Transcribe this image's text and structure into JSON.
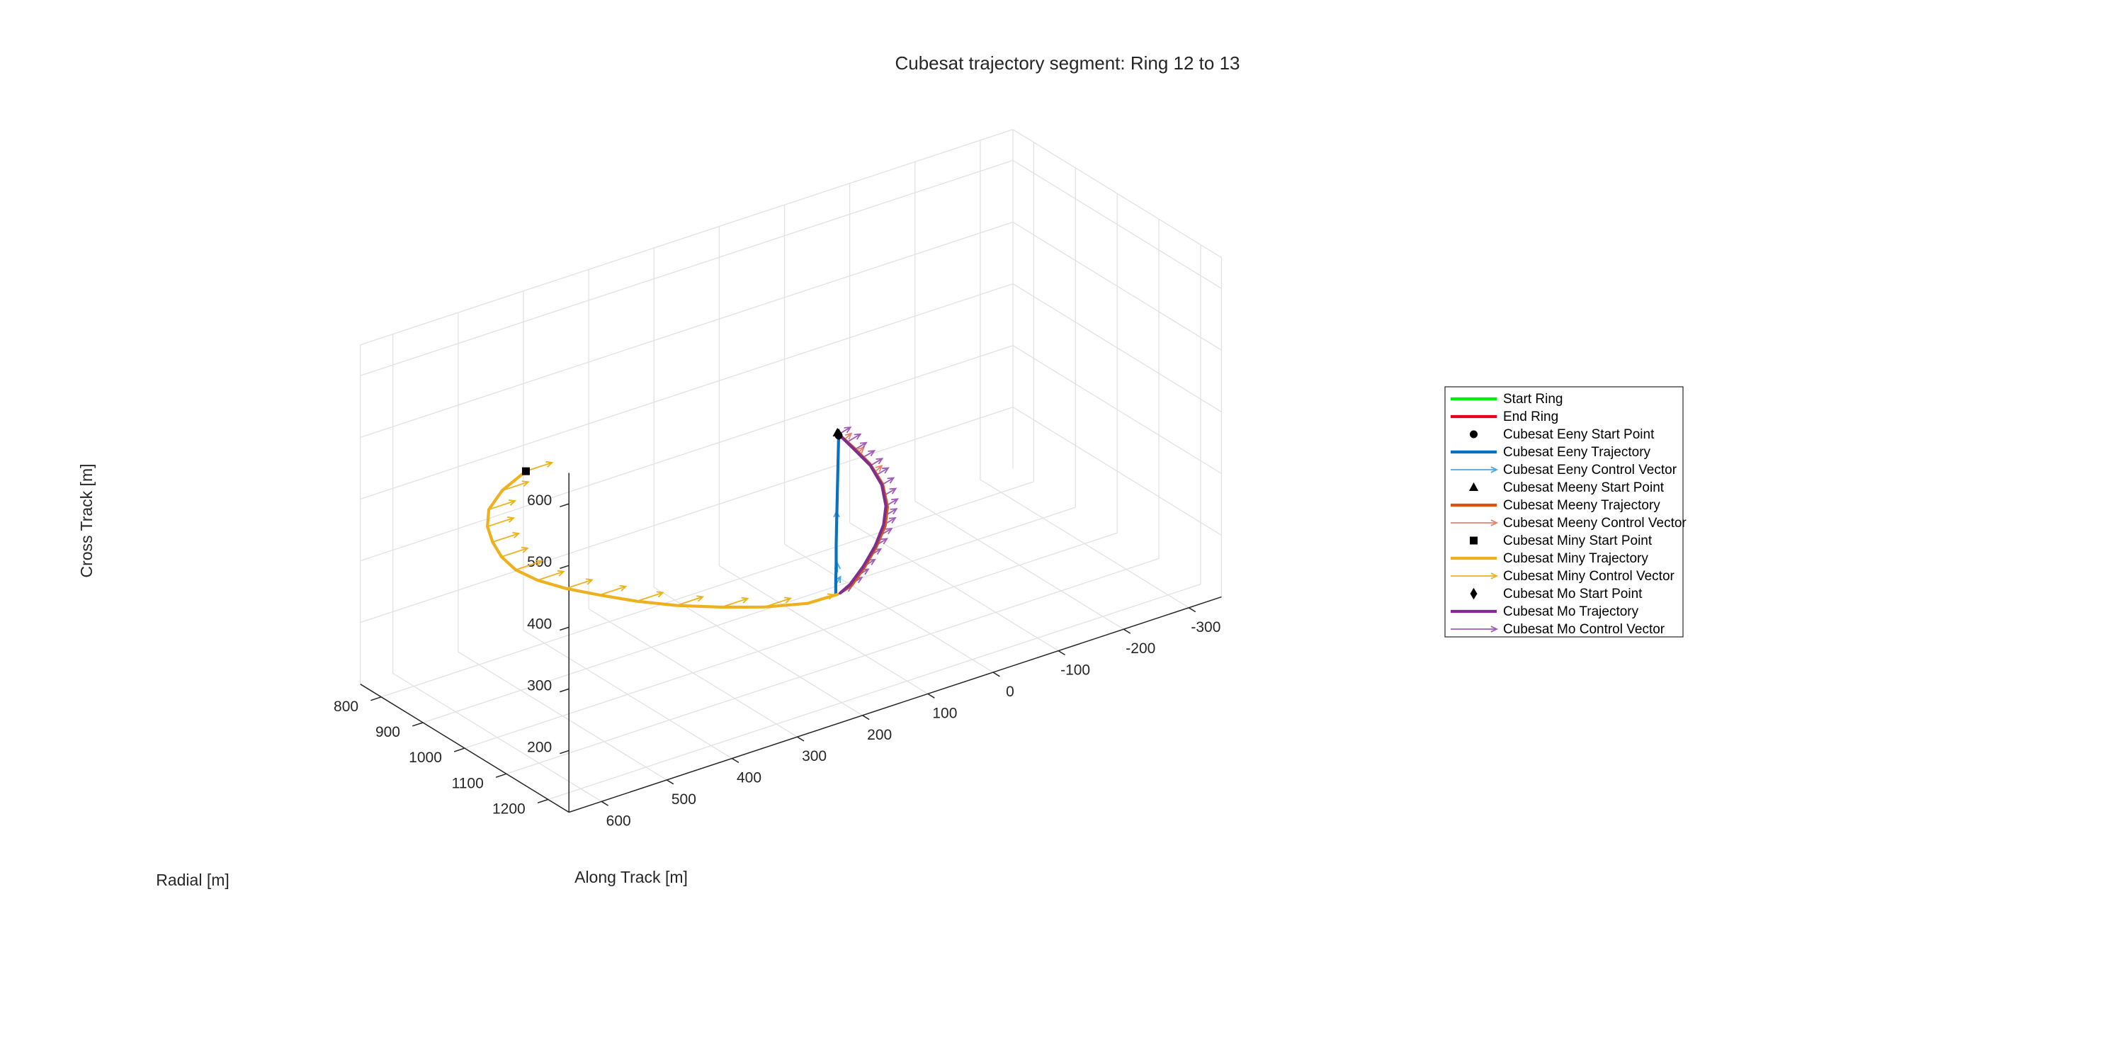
{
  "chart_data": {
    "type": "3d-line",
    "title": "Cubesat trajectory segment: Ring 12 to 13",
    "xlabel": "Along Track [m]",
    "ylabel": "Radial [m]",
    "zlabel": "Cross Track [m]",
    "xlim": [
      -350,
      650
    ],
    "ylim": [
      750,
      1250
    ],
    "zlim": [
      100,
      650
    ],
    "x_ticks": [
      -300,
      -200,
      -100,
      0,
      100,
      200,
      300,
      400,
      500,
      600
    ],
    "y_ticks": [
      800,
      900,
      1000,
      1100,
      1200
    ],
    "z_ticks": [
      200,
      300,
      400,
      500,
      600
    ],
    "grid": true,
    "legend_position": "right",
    "series": [
      {
        "name": "Start Ring",
        "kind": "line",
        "color": "#00ee00",
        "points": []
      },
      {
        "name": "End Ring",
        "kind": "line",
        "color": "#e8001c",
        "points": []
      },
      {
        "name": "Cubesat Eeny Start Point",
        "kind": "marker",
        "marker": "circle",
        "color": "#000000",
        "points": [
          [
            80,
            1005,
            410
          ]
        ]
      },
      {
        "name": "Cubesat Eeny Trajectory",
        "kind": "line",
        "color": "#0a72bd",
        "points": [
          [
            80,
            1005,
            410
          ],
          [
            80,
            1004,
            380
          ],
          [
            80,
            1003,
            350
          ],
          [
            80,
            1002,
            320
          ],
          [
            80,
            1001,
            290
          ],
          [
            80,
            1000,
            260
          ],
          [
            80,
            999,
            230
          ],
          [
            80,
            999,
            200
          ],
          [
            80,
            998,
            170
          ],
          [
            80,
            998,
            150
          ]
        ]
      },
      {
        "name": "Cubesat Eeny Control Vector",
        "kind": "arrows",
        "color": "#4da6e0",
        "arrows": [
          [
            80,
            1000,
            270,
            0,
            0,
            15
          ],
          [
            78,
            999,
            185,
            0,
            0,
            15
          ],
          [
            80,
            998,
            165,
            -6,
            2,
            12
          ]
        ]
      },
      {
        "name": "Cubesat Meeny Start Point",
        "kind": "marker",
        "marker": "triangle",
        "color": "#000000",
        "points": [
          [
            82,
            1005,
            415
          ]
        ]
      },
      {
        "name": "Cubesat Meeny Trajectory",
        "kind": "line",
        "color": "#d95319",
        "points": [
          [
            82,
            1005,
            415
          ],
          [
            55,
            1003,
            380
          ],
          [
            30,
            1002,
            345
          ],
          [
            10,
            1001,
            305
          ],
          [
            2,
            1000,
            265
          ],
          [
            5,
            999,
            235
          ],
          [
            18,
            998,
            205
          ],
          [
            35,
            997,
            178
          ],
          [
            55,
            997,
            155
          ],
          [
            72,
            998,
            150
          ]
        ]
      },
      {
        "name": "Cubesat Meeny Control Vector",
        "kind": "arrows",
        "color": "#e8826b",
        "arrows": [
          [
            70,
            1004,
            400,
            -10,
            0,
            6
          ],
          [
            50,
            1003,
            370,
            -10,
            0,
            6
          ],
          [
            22,
            1002,
            330,
            -10,
            0,
            6
          ]
        ]
      },
      {
        "name": "Cubesat Miny Start Point",
        "kind": "marker",
        "marker": "square",
        "color": "#000000",
        "points": [
          [
            620,
            1100,
            580
          ]
        ]
      },
      {
        "name": "Cubesat Miny Trajectory",
        "kind": "line",
        "color": "#edb120",
        "points": [
          [
            620,
            1100,
            580
          ],
          [
            650,
            1090,
            555
          ],
          [
            664,
            1080,
            525
          ],
          [
            661,
            1072,
            493
          ],
          [
            648,
            1064,
            460
          ],
          [
            628,
            1054,
            425
          ],
          [
            600,
            1044,
            390
          ],
          [
            560,
            1034,
            355
          ],
          [
            510,
            1024,
            320
          ],
          [
            452,
            1014,
            285
          ],
          [
            390,
            1006,
            250
          ],
          [
            325,
            1000,
            218
          ],
          [
            255,
            998,
            190
          ],
          [
            190,
            999,
            168
          ],
          [
            125,
            1001,
            152
          ],
          [
            78,
            1000,
            150
          ]
        ]
      },
      {
        "name": "Cubesat Miny Control Vector",
        "kind": "arrows",
        "color": "#edb120",
        "arrows": [
          [
            620,
            1100,
            580,
            -40,
            0,
            0
          ],
          [
            650,
            1090,
            555,
            -40,
            0,
            0
          ],
          [
            664,
            1080,
            525,
            -40,
            0,
            0
          ],
          [
            661,
            1072,
            493,
            -40,
            0,
            0
          ],
          [
            648,
            1064,
            460,
            -40,
            0,
            0
          ],
          [
            628,
            1054,
            425,
            -40,
            0,
            0
          ],
          [
            600,
            1044,
            390,
            -40,
            0,
            0
          ],
          [
            560,
            1034,
            355,
            -40,
            0,
            0
          ],
          [
            510,
            1024,
            320,
            -40,
            0,
            0
          ],
          [
            452,
            1014,
            285,
            -40,
            0,
            0
          ],
          [
            390,
            1006,
            250,
            -40,
            0,
            0
          ],
          [
            325,
            1000,
            218,
            -40,
            0,
            0
          ],
          [
            255,
            998,
            190,
            -40,
            0,
            0
          ],
          [
            190,
            999,
            168,
            -40,
            0,
            0
          ],
          [
            125,
            1001,
            152,
            -40,
            0,
            0
          ]
        ]
      },
      {
        "name": "Cubesat Mo Start Point",
        "kind": "marker",
        "marker": "diamond",
        "color": "#000000",
        "points": [
          [
            80,
            1005,
            412
          ]
        ]
      },
      {
        "name": "Cubesat Mo Trajectory",
        "kind": "line",
        "color": "#7e2f8e",
        "points": [
          [
            80,
            1005,
            412
          ],
          [
            55,
            1004,
            378
          ],
          [
            30,
            1003,
            343
          ],
          [
            12,
            1002,
            305
          ],
          [
            5,
            1001,
            268
          ],
          [
            8,
            1000,
            238
          ],
          [
            20,
            999,
            208
          ],
          [
            38,
            998,
            180
          ],
          [
            58,
            998,
            158
          ],
          [
            74,
            999,
            150
          ]
        ]
      },
      {
        "name": "Cubesat Mo Control Vector",
        "kind": "arrows",
        "color": "#a05cb8",
        "arrows": [
          [
            80,
            1005,
            412,
            -18,
            0,
            5
          ],
          [
            64,
            1004,
            395,
            -18,
            0,
            5
          ],
          [
            55,
            1004,
            378,
            -18,
            0,
            5
          ],
          [
            42,
            1003,
            360,
            -18,
            0,
            5
          ],
          [
            30,
            1003,
            343,
            -18,
            0,
            5
          ],
          [
            20,
            1002,
            324,
            -18,
            0,
            5
          ],
          [
            12,
            1002,
            305,
            -18,
            0,
            5
          ],
          [
            8,
            1001,
            286,
            -18,
            0,
            5
          ],
          [
            5,
            1001,
            268,
            -18,
            0,
            5
          ],
          [
            6,
            1000,
            252,
            -18,
            0,
            5
          ],
          [
            8,
            1000,
            238,
            -18,
            0,
            5
          ],
          [
            13,
            999,
            222,
            -18,
            0,
            5
          ],
          [
            20,
            999,
            208,
            -18,
            0,
            5
          ],
          [
            29,
            998,
            194,
            -18,
            0,
            5
          ],
          [
            38,
            998,
            180,
            -18,
            0,
            5
          ],
          [
            48,
            998,
            168,
            -18,
            0,
            5
          ],
          [
            58,
            998,
            158,
            -18,
            0,
            5
          ],
          [
            74,
            999,
            150,
            -18,
            0,
            5
          ]
        ]
      }
    ]
  },
  "legend": {
    "entries": [
      {
        "label": "Start Ring",
        "kind": "line",
        "color": "#00ee00"
      },
      {
        "label": "End Ring",
        "kind": "line",
        "color": "#e8001c"
      },
      {
        "label": "Cubesat Eeny Start Point",
        "kind": "marker",
        "marker": "circle",
        "color": "#000000"
      },
      {
        "label": "Cubesat Eeny Trajectory",
        "kind": "line",
        "color": "#0a72bd"
      },
      {
        "label": "Cubesat Eeny Control Vector",
        "kind": "arrow",
        "color": "#4da6e0"
      },
      {
        "label": "Cubesat Meeny Start Point",
        "kind": "marker",
        "marker": "triangle",
        "color": "#000000"
      },
      {
        "label": "Cubesat Meeny Trajectory",
        "kind": "line",
        "color": "#d95319"
      },
      {
        "label": "Cubesat Meeny Control Vector",
        "kind": "arrow",
        "color": "#e8826b"
      },
      {
        "label": "Cubesat Miny Start Point",
        "kind": "marker",
        "marker": "square",
        "color": "#000000"
      },
      {
        "label": "Cubesat Miny Trajectory",
        "kind": "line",
        "color": "#edb120"
      },
      {
        "label": "Cubesat Miny Control Vector",
        "kind": "arrow",
        "color": "#edb120"
      },
      {
        "label": "Cubesat Mo Start Point",
        "kind": "marker",
        "marker": "diamond",
        "color": "#000000"
      },
      {
        "label": "Cubesat Mo Trajectory",
        "kind": "line",
        "color": "#7e2f8e"
      },
      {
        "label": "Cubesat Mo Control Vector",
        "kind": "arrow",
        "color": "#a05cb8"
      }
    ]
  }
}
